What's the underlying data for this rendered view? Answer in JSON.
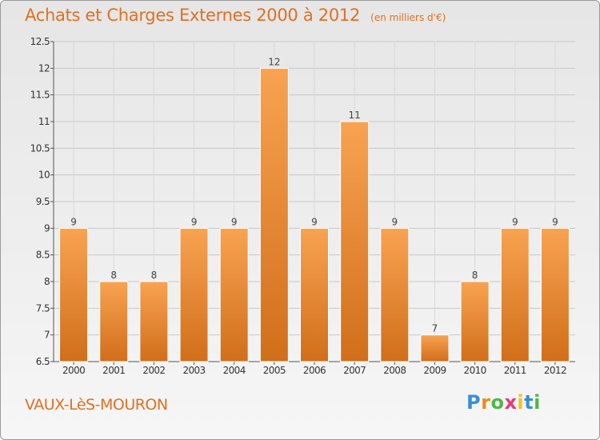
{
  "chart_data": {
    "type": "bar",
    "title": "Achats et Charges Externes 2000 à 2012",
    "subtitle": "(en milliers d'€)",
    "categories": [
      "2000",
      "2001",
      "2002",
      "2003",
      "2004",
      "2005",
      "2006",
      "2007",
      "2008",
      "2009",
      "2010",
      "2011",
      "2012"
    ],
    "values": [
      9,
      8,
      8,
      9,
      9,
      12,
      9,
      11,
      9,
      7,
      8,
      9,
      9
    ],
    "data_labels": [
      "9",
      "8",
      "8",
      "9",
      "9",
      "12",
      "9",
      "11",
      "9",
      "7",
      "8",
      "9",
      "9"
    ],
    "ylim": [
      6.5,
      12.5
    ],
    "yticks": [
      6.5,
      7,
      7.5,
      8,
      8.5,
      9,
      9.5,
      10,
      10.5,
      11,
      11.5,
      12,
      12.5
    ],
    "ytick_labels": [
      "6.5",
      "7",
      "7.5",
      "8",
      "8.5",
      "9",
      "9.5",
      "10",
      "10.5",
      "11",
      "11.5",
      "12",
      "12.5"
    ],
    "xlabel": "",
    "ylabel": "",
    "grid": true,
    "legend": "none",
    "bar_color_light": "#f8a352",
    "bar_color_dark": "#d16e1a"
  },
  "commune": "VAUX-LèS-MOURON",
  "logo": {
    "letters": [
      "P",
      "r",
      "o",
      "x",
      "i",
      "t",
      "i"
    ],
    "colors": [
      "#3a8fd6",
      "#f08a1c",
      "#4db848",
      "#e83a7a",
      "#f6c21a",
      "#3a8fd6",
      "#4db848"
    ]
  }
}
